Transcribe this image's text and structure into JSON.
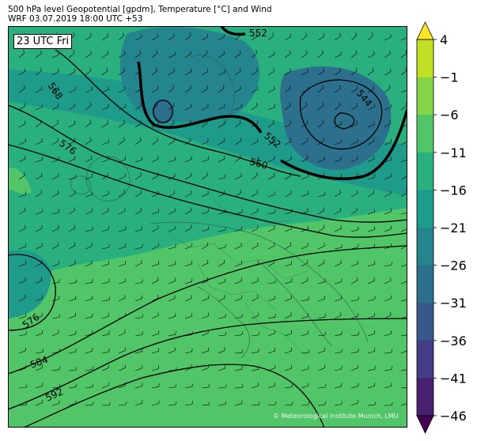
{
  "header": {
    "title_line1": "500 hPa level Geopotential [gpdm], Temperature [°C] and Wind",
    "title_line2": "WRF 03.07.2019 18:00 UTC +53"
  },
  "map": {
    "time_label": "23 UTC Fri",
    "credit": "© Meteorological Institute Munich, LMU",
    "contour_labels": [
      "552",
      "544",
      "568",
      "552",
      "576",
      "560",
      "576",
      "584",
      "592"
    ]
  },
  "colorbar": {
    "tick_labels": [
      "4",
      "-1",
      "-6",
      "-11",
      "-16",
      "-21",
      "-26",
      "-31",
      "-36",
      "-41",
      "-46"
    ],
    "colors": [
      "#fde725",
      "#c2df23",
      "#86d549",
      "#52c569",
      "#2ab07f",
      "#1e9b8a",
      "#25858e",
      "#2d708e",
      "#38588c",
      "#433e85",
      "#482173",
      "#440154"
    ]
  }
}
